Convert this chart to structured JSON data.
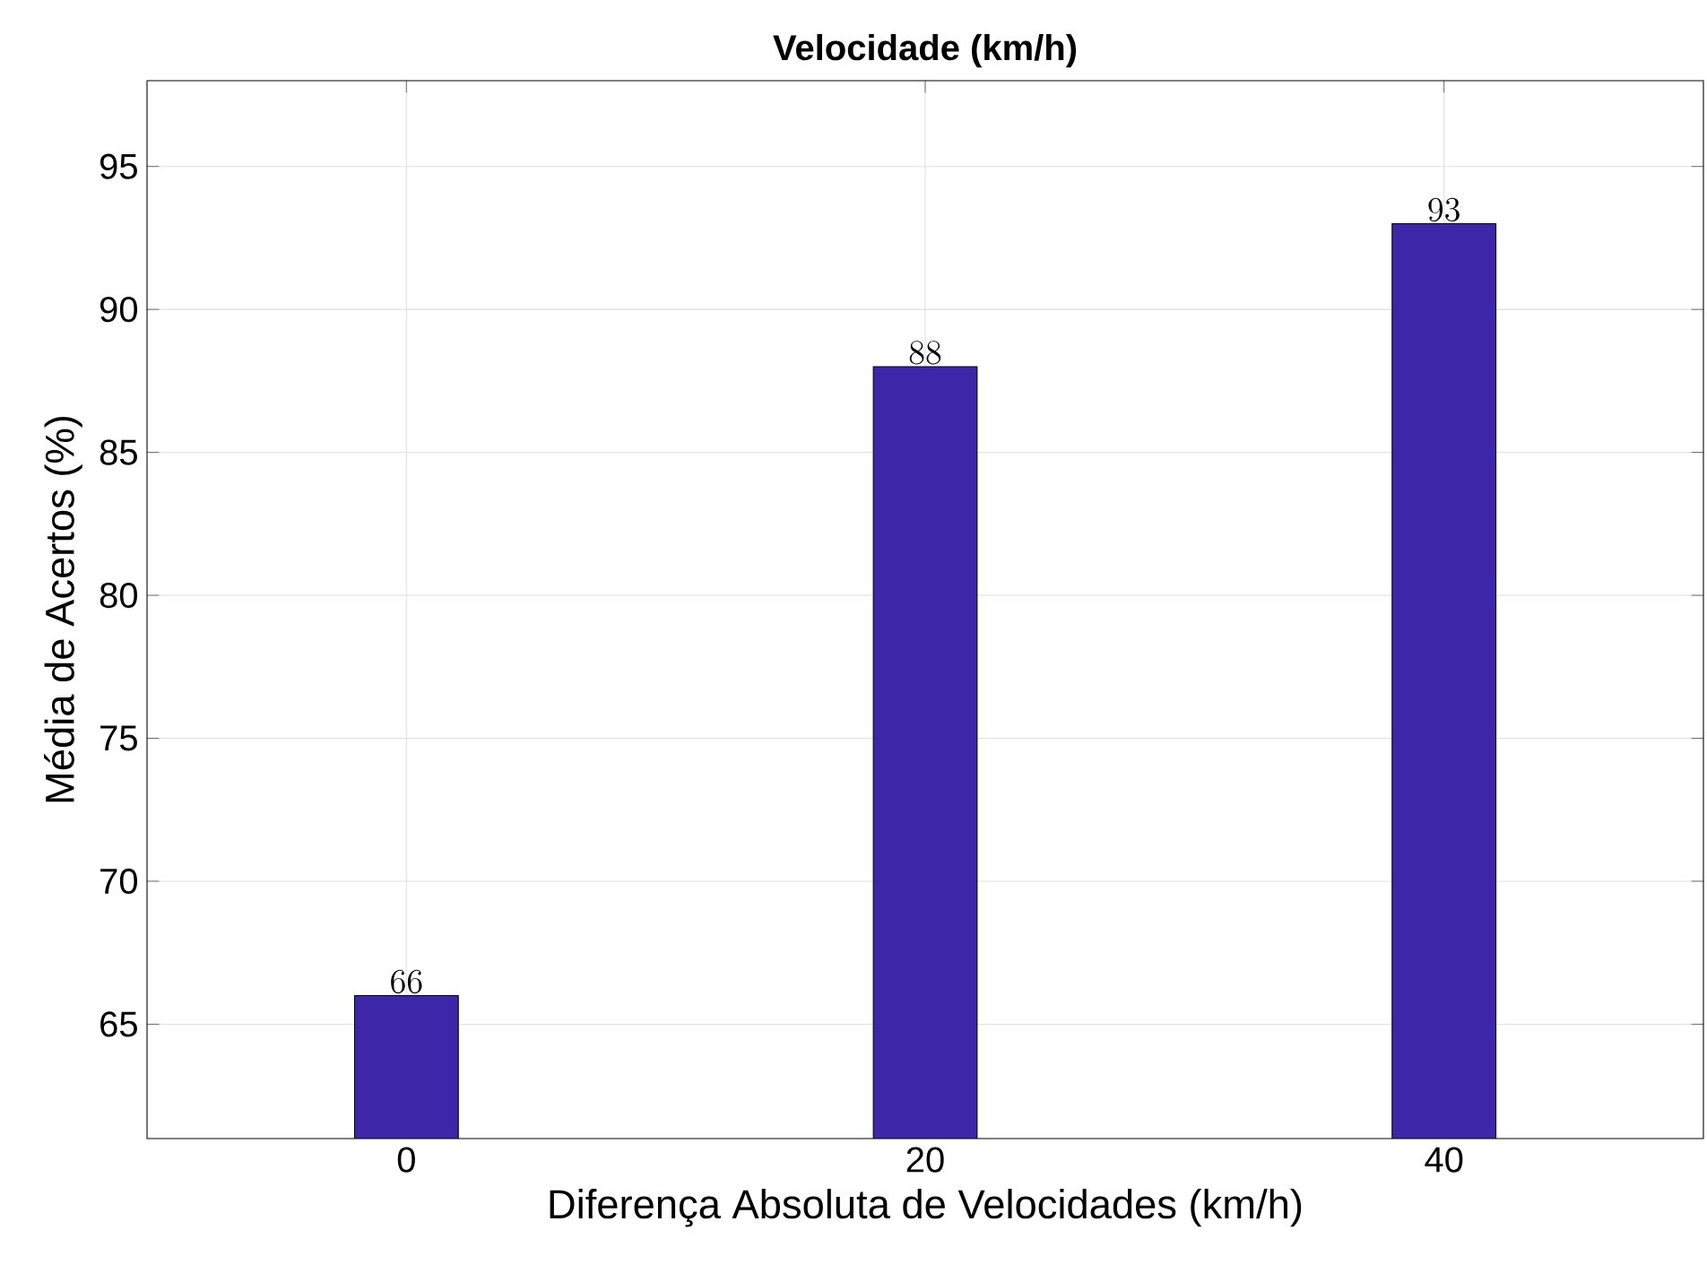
{
  "chart_data": {
    "type": "bar",
    "title": "Velocidade (km/h)",
    "xlabel": "Diferença Absoluta de Velocidades (km/h)",
    "ylabel": "Média de Acertos (%)",
    "x": [
      0,
      20,
      40
    ],
    "values": [
      66,
      88,
      93
    ],
    "color": "#3d27a8",
    "xlim": [
      -10,
      50
    ],
    "xticks": [
      0,
      20,
      40
    ],
    "ylim": [
      61,
      98
    ],
    "yticks": [
      65,
      70,
      75,
      80,
      85,
      90,
      95
    ],
    "grid": true,
    "data_labels": true
  }
}
